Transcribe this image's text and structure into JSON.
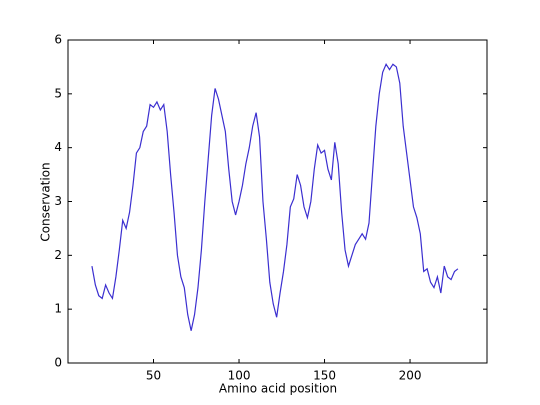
{
  "chart_data": {
    "type": "line",
    "xlabel": "Amino acid position",
    "ylabel": "Conservation",
    "x": [
      14,
      16,
      18,
      20,
      22,
      24,
      26,
      28,
      30,
      32,
      34,
      36,
      38,
      40,
      42,
      44,
      46,
      48,
      50,
      52,
      54,
      56,
      58,
      60,
      62,
      64,
      66,
      68,
      70,
      72,
      74,
      76,
      78,
      80,
      82,
      84,
      86,
      88,
      90,
      92,
      94,
      96,
      98,
      100,
      102,
      104,
      106,
      108,
      110,
      112,
      114,
      116,
      118,
      120,
      122,
      124,
      126,
      128,
      130,
      132,
      134,
      136,
      138,
      140,
      142,
      144,
      146,
      148,
      150,
      152,
      154,
      156,
      158,
      160,
      162,
      164,
      166,
      168,
      170,
      172,
      174,
      176,
      178,
      180,
      182,
      184,
      186,
      188,
      190,
      192,
      194,
      196,
      198,
      200,
      202,
      204,
      206,
      208,
      210,
      212,
      214,
      216,
      218,
      220,
      222,
      224,
      226,
      228
    ],
    "values": [
      1.8,
      1.45,
      1.25,
      1.2,
      1.45,
      1.3,
      1.2,
      1.6,
      2.1,
      2.65,
      2.5,
      2.8,
      3.3,
      3.9,
      4.0,
      4.3,
      4.4,
      4.8,
      4.75,
      4.85,
      4.7,
      4.8,
      4.3,
      3.5,
      2.8,
      2.0,
      1.6,
      1.4,
      0.9,
      0.6,
      0.9,
      1.4,
      2.1,
      3.0,
      3.8,
      4.6,
      5.1,
      4.9,
      4.6,
      4.3,
      3.6,
      3.0,
      2.75,
      3.0,
      3.3,
      3.7,
      4.0,
      4.4,
      4.65,
      4.2,
      3.0,
      2.3,
      1.5,
      1.1,
      0.85,
      1.3,
      1.7,
      2.2,
      2.9,
      3.05,
      3.5,
      3.3,
      2.9,
      2.7,
      3.0,
      3.6,
      4.05,
      3.9,
      3.95,
      3.6,
      3.4,
      4.1,
      3.7,
      2.8,
      2.1,
      1.8,
      2.0,
      2.2,
      2.3,
      2.4,
      2.3,
      2.6,
      3.5,
      4.4,
      5.0,
      5.4,
      5.55,
      5.45,
      5.55,
      5.5,
      5.2,
      4.4,
      3.9,
      3.4,
      2.9,
      2.7,
      2.4,
      1.7,
      1.75,
      1.5,
      1.4,
      1.6,
      1.3,
      1.8,
      1.6,
      1.55,
      1.7,
      1.75
    ],
    "color": "#3b2fd0",
    "xlim": [
      0,
      245
    ],
    "xticks": [
      50,
      100,
      150,
      200
    ],
    "ylim": [
      0,
      6
    ],
    "yticks": [
      0,
      1,
      2,
      3,
      4,
      5,
      6
    ]
  }
}
